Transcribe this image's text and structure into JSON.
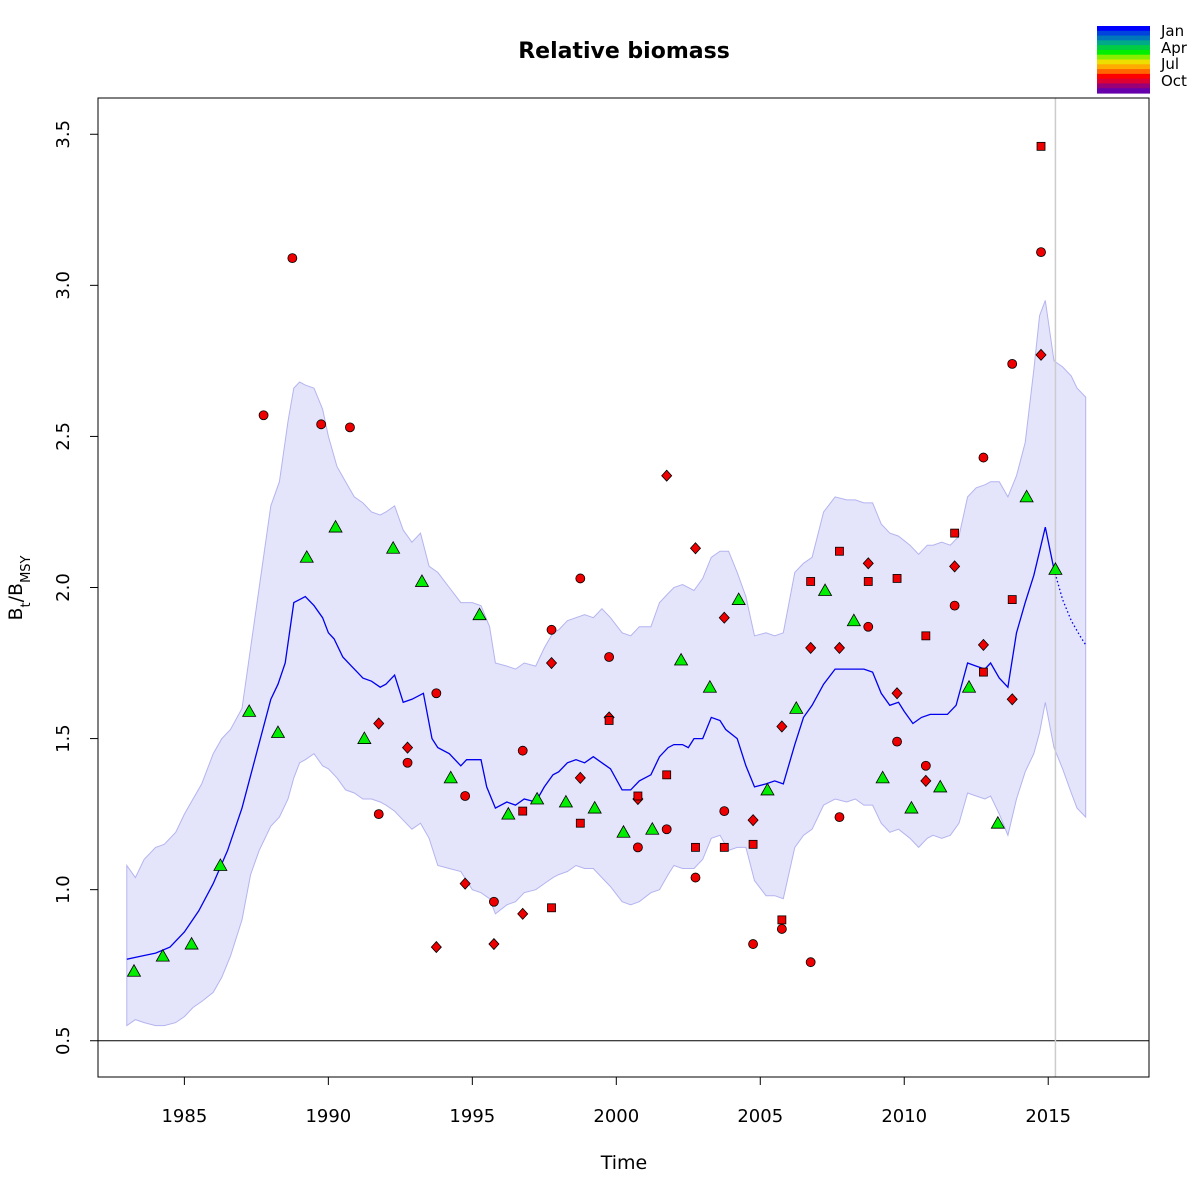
{
  "chart_data": {
    "type": "scatter",
    "title": "Relative biomass",
    "xlabel": "Time",
    "ylabel": {
      "base": "B",
      "sub1": "t",
      "sep": "/B",
      "sub2": "MSY"
    },
    "xlim": [
      1982,
      2018.5
    ],
    "ylim": [
      0.38,
      3.62
    ],
    "x_ticks": [
      1985,
      1990,
      1995,
      2000,
      2005,
      2010,
      2015
    ],
    "y_ticks": [
      0.5,
      1.0,
      1.5,
      2.0,
      2.5,
      3.0,
      3.5
    ],
    "x_tick_labels": [
      "1985",
      "1990",
      "1995",
      "2000",
      "2005",
      "2010",
      "2015"
    ],
    "y_tick_labels": [
      "0.5",
      "1.0",
      "1.5",
      "2.0",
      "2.5",
      "3.0",
      "3.5"
    ],
    "reference_line_y": 0.5,
    "vertical_line_x": 2015.25,
    "colors": {
      "estimate_line": "#0000ee",
      "ci_fill": "#e4e4fb",
      "ci_border": "#b4b4f0",
      "index_points": "#ee0000",
      "other_points": "#00ee00",
      "vline": "#cccccc"
    },
    "legend": {
      "placement": "top-right",
      "type": "month color scale",
      "labels": [
        "Jan",
        "Apr",
        "Jul",
        "Oct"
      ],
      "colors": [
        "#0000ff",
        "#0044dd",
        "#0077bb",
        "#00aa88",
        "#00cc44",
        "#00ee00",
        "#88ee00",
        "#eedd00",
        "#ffaa00",
        "#ff6600",
        "#ff0000",
        "#dd0033",
        "#990077",
        "#6600aa"
      ]
    },
    "estimate": {
      "x": [
        1983.0,
        1983.5,
        1984.0,
        1984.5,
        1985.0,
        1985.5,
        1986.0,
        1986.5,
        1987.0,
        1987.5,
        1988.0,
        1988.25,
        1988.5,
        1988.8,
        1989.0,
        1989.2,
        1989.5,
        1989.8,
        1990.0,
        1990.2,
        1990.5,
        1990.8,
        1991.0,
        1991.2,
        1991.5,
        1991.8,
        1992.0,
        1992.3,
        1992.6,
        1992.9,
        1993.3,
        1993.6,
        1993.8,
        1994.2,
        1994.6,
        1994.8,
        1995.3,
        1995.5,
        1995.8,
        1996.2,
        1996.5,
        1996.8,
        1997.2,
        1997.5,
        1997.8,
        1998.0,
        1998.3,
        1998.6,
        1998.9,
        1999.2,
        1999.5,
        1999.8,
        2000.2,
        2000.5,
        2000.8,
        2001.2,
        2001.5,
        2001.8,
        2002.0,
        2002.3,
        2002.5,
        2002.7,
        2003.0,
        2003.3,
        2003.6,
        2003.8,
        2004.2,
        2004.5,
        2004.8,
        2005.2,
        2005.5,
        2005.8,
        2006.2,
        2006.5,
        2006.8,
        2007.2,
        2007.6,
        2007.8,
        2008.2,
        2008.6,
        2008.9,
        2009.2,
        2009.5,
        2009.8,
        2010.0,
        2010.3,
        2010.6,
        2010.9,
        2011.2,
        2011.5,
        2011.8,
        2012.2,
        2012.5,
        2012.8,
        2013.0,
        2013.3,
        2013.6,
        2013.9,
        2014.2,
        2014.5,
        2014.7,
        2014.9,
        2015.2
      ],
      "y": [
        0.77,
        0.78,
        0.79,
        0.81,
        0.86,
        0.93,
        1.02,
        1.13,
        1.27,
        1.45,
        1.63,
        1.68,
        1.75,
        1.95,
        1.96,
        1.97,
        1.94,
        1.9,
        1.85,
        1.83,
        1.77,
        1.74,
        1.72,
        1.7,
        1.69,
        1.67,
        1.68,
        1.71,
        1.62,
        1.63,
        1.65,
        1.5,
        1.47,
        1.45,
        1.41,
        1.43,
        1.43,
        1.34,
        1.27,
        1.29,
        1.28,
        1.3,
        1.29,
        1.34,
        1.38,
        1.39,
        1.42,
        1.43,
        1.42,
        1.44,
        1.42,
        1.4,
        1.33,
        1.33,
        1.36,
        1.38,
        1.44,
        1.47,
        1.48,
        1.48,
        1.47,
        1.5,
        1.5,
        1.57,
        1.56,
        1.53,
        1.5,
        1.41,
        1.34,
        1.35,
        1.36,
        1.35,
        1.48,
        1.57,
        1.61,
        1.68,
        1.73,
        1.73,
        1.73,
        1.73,
        1.72,
        1.65,
        1.61,
        1.62,
        1.59,
        1.55,
        1.57,
        1.58,
        1.58,
        1.58,
        1.61,
        1.75,
        1.74,
        1.73,
        1.75,
        1.7,
        1.67,
        1.85,
        1.95,
        2.04,
        2.12,
        2.2,
        2.06
      ]
    },
    "forecast": {
      "x": [
        2015.2,
        2015.5,
        2015.8,
        2016.1,
        2016.3
      ],
      "y": [
        2.06,
        1.96,
        1.89,
        1.84,
        1.81
      ]
    },
    "ci_upper": {
      "x": [
        1983.0,
        1983.3,
        1983.6,
        1984.0,
        1984.3,
        1984.7,
        1985.0,
        1985.3,
        1985.6,
        1986.0,
        1986.3,
        1986.6,
        1987.0,
        1987.3,
        1987.6,
        1988.0,
        1988.3,
        1988.6,
        1988.8,
        1989.0,
        1989.2,
        1989.5,
        1989.8,
        1990.0,
        1990.3,
        1990.6,
        1990.9,
        1991.2,
        1991.5,
        1991.8,
        1992.0,
        1992.3,
        1992.6,
        1992.9,
        1993.2,
        1993.5,
        1993.8,
        1994.2,
        1994.6,
        1995.0,
        1995.3,
        1995.6,
        1995.8,
        1996.2,
        1996.5,
        1996.8,
        1997.2,
        1997.5,
        1997.8,
        1998.0,
        1998.3,
        1998.6,
        1998.9,
        1999.2,
        1999.5,
        1999.8,
        2000.2,
        2000.5,
        2000.8,
        2001.2,
        2001.5,
        2001.8,
        2002.0,
        2002.3,
        2002.7,
        2003.0,
        2003.3,
        2003.6,
        2003.9,
        2004.2,
        2004.5,
        2004.8,
        2005.2,
        2005.5,
        2005.8,
        2006.2,
        2006.5,
        2006.8,
        2007.2,
        2007.6,
        2008.0,
        2008.3,
        2008.6,
        2008.9,
        2009.2,
        2009.5,
        2009.8,
        2010.2,
        2010.5,
        2010.8,
        2011.0,
        2011.3,
        2011.6,
        2011.9,
        2012.2,
        2012.5,
        2012.8,
        2013.0,
        2013.3,
        2013.6,
        2013.9,
        2014.2,
        2014.5,
        2014.7,
        2014.9,
        2015.2,
        2015.5,
        2015.8,
        2016.0,
        2016.3
      ],
      "y": [
        1.08,
        1.04,
        1.1,
        1.14,
        1.15,
        1.19,
        1.25,
        1.3,
        1.35,
        1.45,
        1.5,
        1.53,
        1.6,
        1.8,
        2.0,
        2.27,
        2.35,
        2.55,
        2.66,
        2.68,
        2.67,
        2.66,
        2.59,
        2.5,
        2.4,
        2.35,
        2.3,
        2.28,
        2.25,
        2.24,
        2.25,
        2.27,
        2.19,
        2.15,
        2.18,
        2.07,
        2.05,
        2.0,
        1.95,
        1.95,
        1.94,
        1.87,
        1.75,
        1.74,
        1.73,
        1.75,
        1.74,
        1.8,
        1.85,
        1.86,
        1.89,
        1.9,
        1.91,
        1.9,
        1.93,
        1.9,
        1.85,
        1.84,
        1.87,
        1.87,
        1.95,
        1.98,
        2.0,
        2.01,
        1.99,
        2.03,
        2.1,
        2.12,
        2.12,
        2.05,
        1.97,
        1.84,
        1.85,
        1.84,
        1.85,
        2.05,
        2.08,
        2.1,
        2.25,
        2.3,
        2.29,
        2.29,
        2.28,
        2.28,
        2.21,
        2.18,
        2.17,
        2.14,
        2.11,
        2.14,
        2.14,
        2.15,
        2.14,
        2.17,
        2.3,
        2.33,
        2.34,
        2.35,
        2.35,
        2.3,
        2.37,
        2.48,
        2.72,
        2.9,
        2.95,
        2.75,
        2.73,
        2.7,
        2.66,
        2.63
      ]
    },
    "ci_lower": {
      "x": [
        1983.0,
        1983.3,
        1983.6,
        1984.0,
        1984.3,
        1984.7,
        1985.0,
        1985.3,
        1985.6,
        1986.0,
        1986.3,
        1986.6,
        1987.0,
        1987.3,
        1987.6,
        1988.0,
        1988.3,
        1988.6,
        1988.8,
        1989.0,
        1989.2,
        1989.5,
        1989.8,
        1990.0,
        1990.3,
        1990.6,
        1990.9,
        1991.2,
        1991.5,
        1991.8,
        1992.0,
        1992.3,
        1992.6,
        1992.9,
        1993.2,
        1993.5,
        1993.8,
        1994.2,
        1994.6,
        1995.0,
        1995.3,
        1995.6,
        1995.8,
        1996.2,
        1996.5,
        1996.8,
        1997.2,
        1997.5,
        1997.8,
        1998.0,
        1998.3,
        1998.6,
        1998.9,
        1999.2,
        1999.5,
        1999.8,
        2000.2,
        2000.5,
        2000.8,
        2001.2,
        2001.5,
        2001.8,
        2002.0,
        2002.3,
        2002.7,
        2003.0,
        2003.3,
        2003.6,
        2003.9,
        2004.2,
        2004.5,
        2004.8,
        2005.2,
        2005.5,
        2005.8,
        2006.2,
        2006.5,
        2006.8,
        2007.2,
        2007.6,
        2008.0,
        2008.3,
        2008.6,
        2008.9,
        2009.2,
        2009.5,
        2009.8,
        2010.2,
        2010.5,
        2010.8,
        2011.0,
        2011.3,
        2011.6,
        2011.9,
        2012.2,
        2012.5,
        2012.8,
        2013.0,
        2013.3,
        2013.6,
        2013.9,
        2014.2,
        2014.5,
        2014.7,
        2014.9,
        2015.2,
        2015.5,
        2015.8,
        2016.0,
        2016.3
      ],
      "y": [
        0.55,
        0.57,
        0.56,
        0.55,
        0.55,
        0.56,
        0.58,
        0.61,
        0.63,
        0.66,
        0.71,
        0.78,
        0.9,
        1.05,
        1.13,
        1.21,
        1.24,
        1.3,
        1.37,
        1.42,
        1.43,
        1.45,
        1.41,
        1.4,
        1.37,
        1.33,
        1.32,
        1.3,
        1.3,
        1.29,
        1.28,
        1.26,
        1.23,
        1.2,
        1.22,
        1.17,
        1.08,
        1.07,
        1.06,
        1.0,
        0.99,
        0.97,
        0.92,
        0.95,
        0.96,
        0.99,
        1.0,
        1.02,
        1.04,
        1.05,
        1.06,
        1.08,
        1.07,
        1.07,
        1.04,
        1.01,
        0.96,
        0.95,
        0.96,
        0.99,
        1.0,
        1.05,
        1.08,
        1.07,
        1.07,
        1.1,
        1.17,
        1.18,
        1.13,
        1.14,
        1.14,
        1.03,
        0.98,
        0.98,
        0.97,
        1.14,
        1.18,
        1.2,
        1.28,
        1.3,
        1.29,
        1.3,
        1.28,
        1.28,
        1.22,
        1.19,
        1.2,
        1.17,
        1.14,
        1.17,
        1.18,
        1.17,
        1.18,
        1.22,
        1.32,
        1.31,
        1.3,
        1.31,
        1.25,
        1.18,
        1.3,
        1.39,
        1.45,
        1.52,
        1.62,
        1.47,
        1.4,
        1.32,
        1.27,
        1.24
      ]
    },
    "series": [
      {
        "marker": "triangle",
        "color": "#00ee00",
        "x": [
          1983.25,
          1984.25,
          1985.25,
          1986.25,
          1987.25,
          1988.25,
          1989.25,
          1990.25,
          1991.25,
          1992.25,
          1993.25,
          1994.25,
          1995.25,
          1996.25,
          1997.25,
          1998.25,
          1999.25,
          2000.25,
          2001.25,
          2002.25,
          2003.25,
          2004.25,
          2005.25,
          2006.25,
          2007.25,
          2008.25,
          2009.25,
          2010.25,
          2011.25,
          2012.25,
          2013.25,
          2014.25,
          2015.25
        ],
        "y": [
          0.73,
          0.78,
          0.82,
          1.08,
          1.59,
          1.52,
          2.1,
          2.2,
          1.5,
          2.13,
          2.02,
          1.37,
          1.91,
          1.25,
          1.3,
          1.29,
          1.27,
          1.19,
          1.2,
          1.76,
          1.67,
          1.96,
          1.33,
          1.6,
          1.99,
          1.89,
          1.37,
          1.27,
          1.34,
          1.67,
          1.22,
          2.3,
          2.06
        ]
      },
      {
        "marker": "circle",
        "color": "#ee0000",
        "x": [
          1987.75,
          1988.75,
          1989.75,
          1990.75,
          1991.75,
          1992.75,
          1993.75,
          1994.75,
          1995.75,
          1996.75,
          1997.75,
          1998.75,
          1999.75,
          2000.75,
          2001.75,
          2002.75,
          2003.75,
          2004.75,
          2005.75,
          2006.75,
          2007.75,
          2008.75,
          2009.75,
          2010.75,
          2011.75,
          2012.75,
          2013.75,
          2014.75
        ],
        "y": [
          2.57,
          3.09,
          2.54,
          2.53,
          1.25,
          1.42,
          1.65,
          1.31,
          0.96,
          1.46,
          1.86,
          2.03,
          1.77,
          1.14,
          1.2,
          1.04,
          1.26,
          0.82,
          0.87,
          0.76,
          1.24,
          1.87,
          1.49,
          1.41,
          1.94,
          2.43,
          2.74,
          3.11
        ]
      },
      {
        "marker": "diamond",
        "color": "#ee0000",
        "x": [
          1991.75,
          1992.75,
          1993.75,
          1994.75,
          1995.75,
          1996.75,
          1997.75,
          1998.75,
          1999.75,
          2000.75,
          2001.75,
          2002.75,
          2003.75,
          2004.75,
          2005.75,
          2006.75,
          2007.75,
          2008.75,
          2009.75,
          2010.75,
          2011.75,
          2012.75,
          2013.75,
          2014.75
        ],
        "y": [
          1.55,
          1.47,
          0.81,
          1.02,
          0.82,
          0.92,
          1.75,
          1.37,
          1.57,
          1.3,
          2.37,
          2.13,
          1.9,
          1.23,
          1.54,
          1.8,
          1.8,
          2.08,
          1.65,
          1.36,
          2.07,
          1.81,
          1.63,
          2.77
        ]
      },
      {
        "marker": "square",
        "color": "#ee0000",
        "x": [
          1996.75,
          1997.75,
          1998.75,
          1999.75,
          2000.75,
          2001.75,
          2002.75,
          2003.75,
          2004.75,
          2005.75,
          2006.75,
          2007.75,
          2008.75,
          2009.75,
          2010.75,
          2011.75,
          2012.75,
          2013.75,
          2014.75
        ],
        "y": [
          1.26,
          0.94,
          1.22,
          1.56,
          1.31,
          1.38,
          1.14,
          1.14,
          1.15,
          0.9,
          2.02,
          2.12,
          2.02,
          2.03,
          1.84,
          2.18,
          1.72,
          1.96,
          3.46
        ]
      }
    ]
  }
}
